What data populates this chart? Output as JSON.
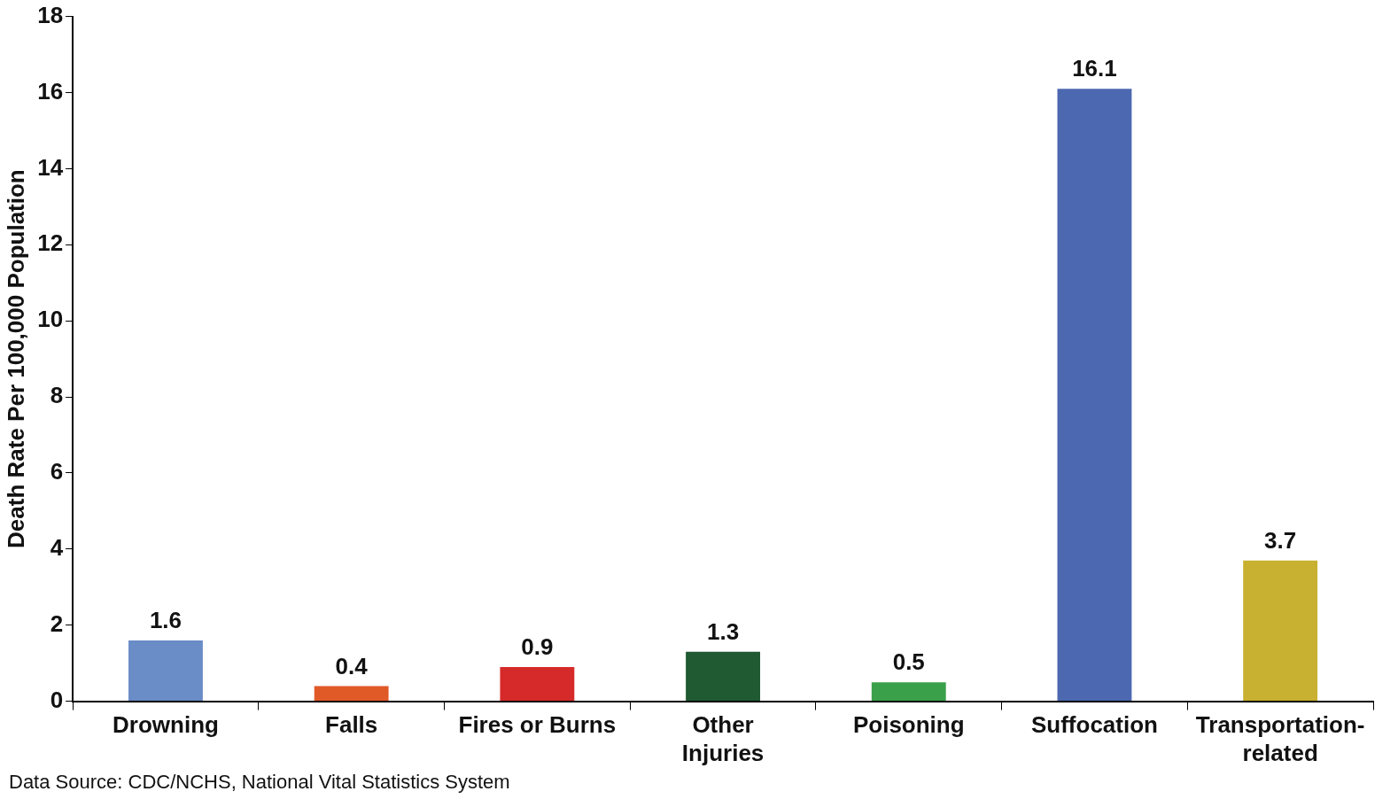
{
  "chart_data": {
    "type": "bar",
    "ylabel": "Death Rate Per 100,000 Population",
    "categories": [
      "Drowning",
      "Falls",
      "Fires or Burns",
      "Other\nInjuries",
      "Poisoning",
      "Suffocation",
      "Transportation-\nrelated"
    ],
    "values": [
      1.6,
      0.4,
      0.9,
      1.3,
      0.5,
      16.1,
      3.7
    ],
    "colors": [
      "#6a8cc7",
      "#e05a28",
      "#d62a2a",
      "#1f5a32",
      "#3aa04a",
      "#4c68b0",
      "#c8b030"
    ],
    "ylim": [
      0,
      18
    ],
    "yticks": [
      0,
      2,
      4,
      6,
      8,
      10,
      12,
      14,
      16,
      18
    ],
    "grid": false,
    "legend": false,
    "data_labels": true,
    "annotations": [
      "Data Source: CDC/NCHS, National Vital Statistics System"
    ]
  }
}
